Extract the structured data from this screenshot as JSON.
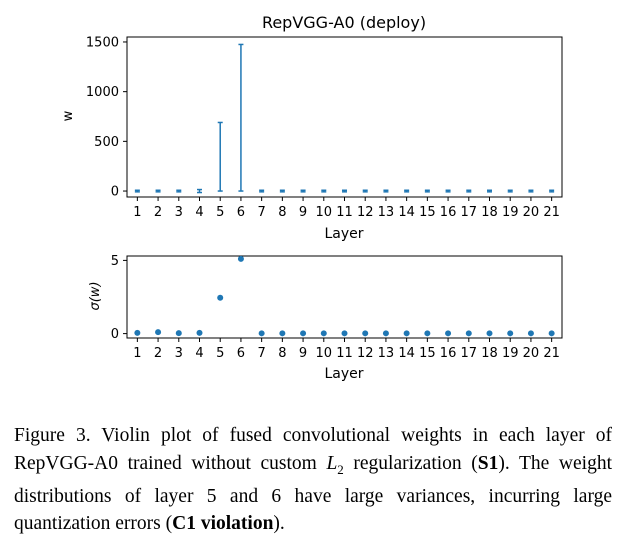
{
  "chart_data": [
    {
      "type": "violin",
      "title": "RepVGG-A0 (deploy)",
      "xlabel": "Layer",
      "ylabel": "w",
      "categories": [
        "1",
        "2",
        "3",
        "4",
        "5",
        "6",
        "7",
        "8",
        "9",
        "10",
        "11",
        "12",
        "13",
        "14",
        "15",
        "16",
        "17",
        "18",
        "19",
        "20",
        "21"
      ],
      "yticks": [
        0,
        500,
        1000,
        1500
      ],
      "ylim": [
        -60,
        1550
      ],
      "ranges": [
        [
          -8,
          8
        ],
        [
          -8,
          8
        ],
        [
          -8,
          8
        ],
        [
          -15,
          15
        ],
        [
          0,
          690
        ],
        [
          0,
          1475
        ],
        [
          -8,
          8
        ],
        [
          -8,
          8
        ],
        [
          -8,
          8
        ],
        [
          -8,
          8
        ],
        [
          -8,
          8
        ],
        [
          -8,
          8
        ],
        [
          -8,
          8
        ],
        [
          -8,
          8
        ],
        [
          -8,
          8
        ],
        [
          -8,
          8
        ],
        [
          -8,
          8
        ],
        [
          -8,
          8
        ],
        [
          -8,
          8
        ],
        [
          -8,
          8
        ],
        [
          -8,
          8
        ]
      ],
      "color": "#1f77b4"
    },
    {
      "type": "scatter",
      "title": "",
      "xlabel": "Layer",
      "ylabel": "σ(w)",
      "categories": [
        "1",
        "2",
        "3",
        "4",
        "5",
        "6",
        "7",
        "8",
        "9",
        "10",
        "11",
        "12",
        "13",
        "14",
        "15",
        "16",
        "17",
        "18",
        "19",
        "20",
        "21"
      ],
      "yticks": [
        0,
        5
      ],
      "ylim": [
        -0.3,
        5.3
      ],
      "values": [
        0.05,
        0.1,
        0.03,
        0.05,
        2.45,
        5.1,
        0.02,
        0.02,
        0.02,
        0.02,
        0.02,
        0.02,
        0.02,
        0.02,
        0.02,
        0.02,
        0.02,
        0.02,
        0.02,
        0.02,
        0.02
      ],
      "color": "#1f77b4"
    }
  ],
  "caption": {
    "lead": "Figure 3. Violin plot of fused convolutional weights in each layer of RepVGG-A0 trained without custom ",
    "math_L": "L",
    "math_sub": "2",
    "mid": " regularization (",
    "bold1": "S1",
    "mid2": "). The weight distributions of layer 5 and 6 have large variances, incurring large quantization errors (",
    "bold2": "C1 violation",
    "tail": ")."
  }
}
